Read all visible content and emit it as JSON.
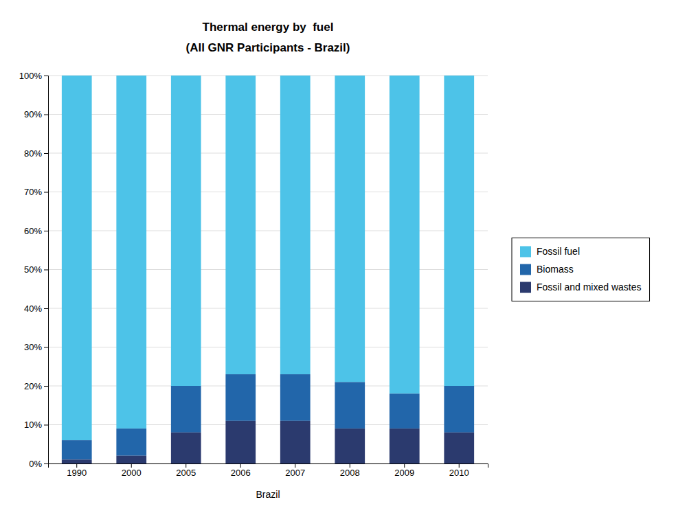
{
  "chart_data": {
    "type": "bar",
    "stacked": true,
    "title": "Thermal energy by  fuel",
    "subtitle": "(All GNR Participants - Brazil)",
    "x_label": "Brazil",
    "categories": [
      "1990",
      "2000",
      "2005",
      "2006",
      "2007",
      "2008",
      "2009",
      "2010"
    ],
    "series": [
      {
        "name": "Fossil fuel",
        "color": "#4DC3E8",
        "values": [
          94,
          91,
          80,
          77,
          77,
          79,
          82,
          80
        ]
      },
      {
        "name": "Biomass",
        "color": "#2266AA",
        "values": [
          5,
          7,
          12,
          12,
          12,
          12,
          9,
          12
        ]
      },
      {
        "name": "Fossil and mixed wastes",
        "color": "#2B3A6E",
        "values": [
          1,
          2,
          8,
          11,
          11,
          9,
          9,
          8
        ]
      }
    ],
    "ylim": [
      0,
      100
    ],
    "yticks": [
      {
        "value": 0,
        "label": "0%"
      },
      {
        "value": 10,
        "label": "10%"
      },
      {
        "value": 20,
        "label": "20%"
      },
      {
        "value": 30,
        "label": "30%"
      },
      {
        "value": 40,
        "label": "40%"
      },
      {
        "value": 50,
        "label": "50%"
      },
      {
        "value": 60,
        "label": "60%"
      },
      {
        "value": 70,
        "label": "70%"
      },
      {
        "value": 80,
        "label": "80%"
      },
      {
        "value": 90,
        "label": "90%"
      },
      {
        "value": 100,
        "label": "100%"
      }
    ],
    "grid": true,
    "legend": "right"
  }
}
